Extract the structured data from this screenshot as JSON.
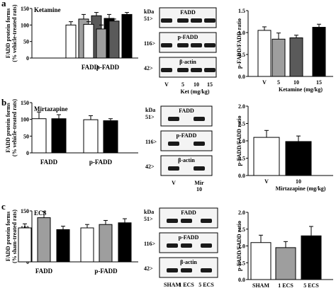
{
  "panels": [
    {
      "letter": "a",
      "drug": "Ketamine",
      "ylabel_left": [
        "FADD protein forms",
        "(% vehicle-treated rats)"
      ],
      "group_labels": [
        "FADD",
        "p-FADD"
      ],
      "significance": "*",
      "blot_labels": [
        "FADD",
        "p-FADD",
        "β-actin"
      ],
      "kda_header": "kDa",
      "kda_markers": [
        "51>",
        "116>",
        "42>"
      ],
      "lane_labels": [
        "V",
        "5",
        "10",
        "15"
      ],
      "lane_footer": "Ket (mg/kg)",
      "ylabel_right": "p-FADD/FADD ratio",
      "xlabel_right": "Ketamine (mg/kg)",
      "ratio_categories": [
        "V",
        "5",
        "10",
        "15"
      ]
    },
    {
      "letter": "b",
      "drug": "Mirtazapine",
      "ylabel_left": [
        "FADD protein forms",
        "(% vehicle-treated rats)"
      ],
      "group_labels": [
        "FADD",
        "p-FADD"
      ],
      "blot_labels": [
        "FADD",
        "p-FADD",
        "β-actin"
      ],
      "kda_header": "kDa",
      "kda_markers": [
        "51>",
        "116>",
        "42>"
      ],
      "lane_labels": [
        "V",
        "Mir",
        "10"
      ],
      "ylabel_right": "p-FADD/FADD ratio",
      "xlabel_right": "Mirtazapine (mg/kg)",
      "ratio_categories": [
        "V",
        "10"
      ]
    },
    {
      "letter": "c",
      "drug": "ECS",
      "ylabel_left": [
        "FADD protein forms",
        "(% sham-treated rats)"
      ],
      "group_labels": [
        "FADD",
        "p-FADD"
      ],
      "blot_labels": [
        "FADD",
        "p-FADD",
        "β-actin"
      ],
      "kda_header": "kDa",
      "kda_markers": [
        "51>",
        "116>",
        "42>"
      ],
      "lane_labels": [
        "SHAM",
        "1 ECS",
        "5 ECS"
      ],
      "ylabel_right": "p-FADD/FADD ratio",
      "ratio_categories": [
        "SHAM",
        "1 ECS",
        "5 ECS"
      ]
    }
  ],
  "chart_data": [
    {
      "type": "bar",
      "panel": "a",
      "ylim": [
        0,
        150
      ],
      "yticks": [
        "0",
        "50",
        "100",
        "150"
      ],
      "groups": [
        "FADD",
        "p-FADD"
      ],
      "series_colors": [
        "#ffffff",
        "#9e9e9e",
        "#5a5a5a",
        "#000000"
      ],
      "values": [
        [
          100,
          118,
          128,
          120
        ],
        [
          102,
          88,
          112,
          132
        ]
      ],
      "errors": [
        [
          10,
          14,
          10,
          12
        ],
        [
          8,
          12,
          6,
          6
        ]
      ]
    },
    {
      "type": "bar",
      "panel": "a",
      "ylim": [
        0,
        1.5
      ],
      "yticks": [
        "0.0",
        "0.5",
        "1.0",
        "1.5"
      ],
      "categories": [
        "V",
        "5",
        "10",
        "15"
      ],
      "colors": [
        "#ffffff",
        "#9e9e9e",
        "#5a5a5a",
        "#000000"
      ],
      "values": [
        1.05,
        0.85,
        0.88,
        1.12
      ],
      "errors": [
        0.08,
        0.14,
        0.06,
        0.07
      ]
    },
    {
      "type": "bar",
      "panel": "b",
      "ylim": [
        0,
        150
      ],
      "yticks": [
        "0",
        "50",
        "100",
        "150"
      ],
      "groups": [
        "FADD",
        "p-FADD"
      ],
      "series_colors": [
        "#ffffff",
        "#000000"
      ],
      "values": [
        [
          102,
          102
        ],
        [
          99,
          96
        ]
      ],
      "errors": [
        [
          20,
          12
        ],
        [
          12,
          6
        ]
      ]
    },
    {
      "type": "bar",
      "panel": "b",
      "ylim": [
        0,
        2.0
      ],
      "yticks": [
        "0.0",
        "0.5",
        "1.0",
        "1.5",
        "2.0"
      ],
      "categories": [
        "V",
        "10"
      ],
      "colors": [
        "#ffffff",
        "#000000"
      ],
      "values": [
        1.1,
        0.98
      ],
      "errors": [
        0.2,
        0.16
      ]
    },
    {
      "type": "bar",
      "panel": "c",
      "ylim": [
        0,
        150
      ],
      "yticks": [
        "0",
        "50",
        "100",
        "150"
      ],
      "groups": [
        "FADD",
        "p-FADD"
      ],
      "series_colors": [
        "#ffffff",
        "#9e9e9e",
        "#000000"
      ],
      "values": [
        [
          100,
          130,
          95
        ],
        [
          100,
          110,
          115
        ]
      ],
      "errors": [
        [
          12,
          18,
          10
        ],
        [
          10,
          12,
          12
        ]
      ]
    },
    {
      "type": "bar",
      "panel": "c",
      "ylim": [
        0,
        2.0
      ],
      "yticks": [
        "0.0",
        "0.5",
        "1.0",
        "1.5",
        "2.0"
      ],
      "categories": [
        "SHAM",
        "1 ECS",
        "5 ECS"
      ],
      "colors": [
        "#ffffff",
        "#9e9e9e",
        "#000000"
      ],
      "values": [
        1.1,
        0.95,
        1.3
      ],
      "errors": [
        0.22,
        0.18,
        0.28
      ]
    }
  ]
}
